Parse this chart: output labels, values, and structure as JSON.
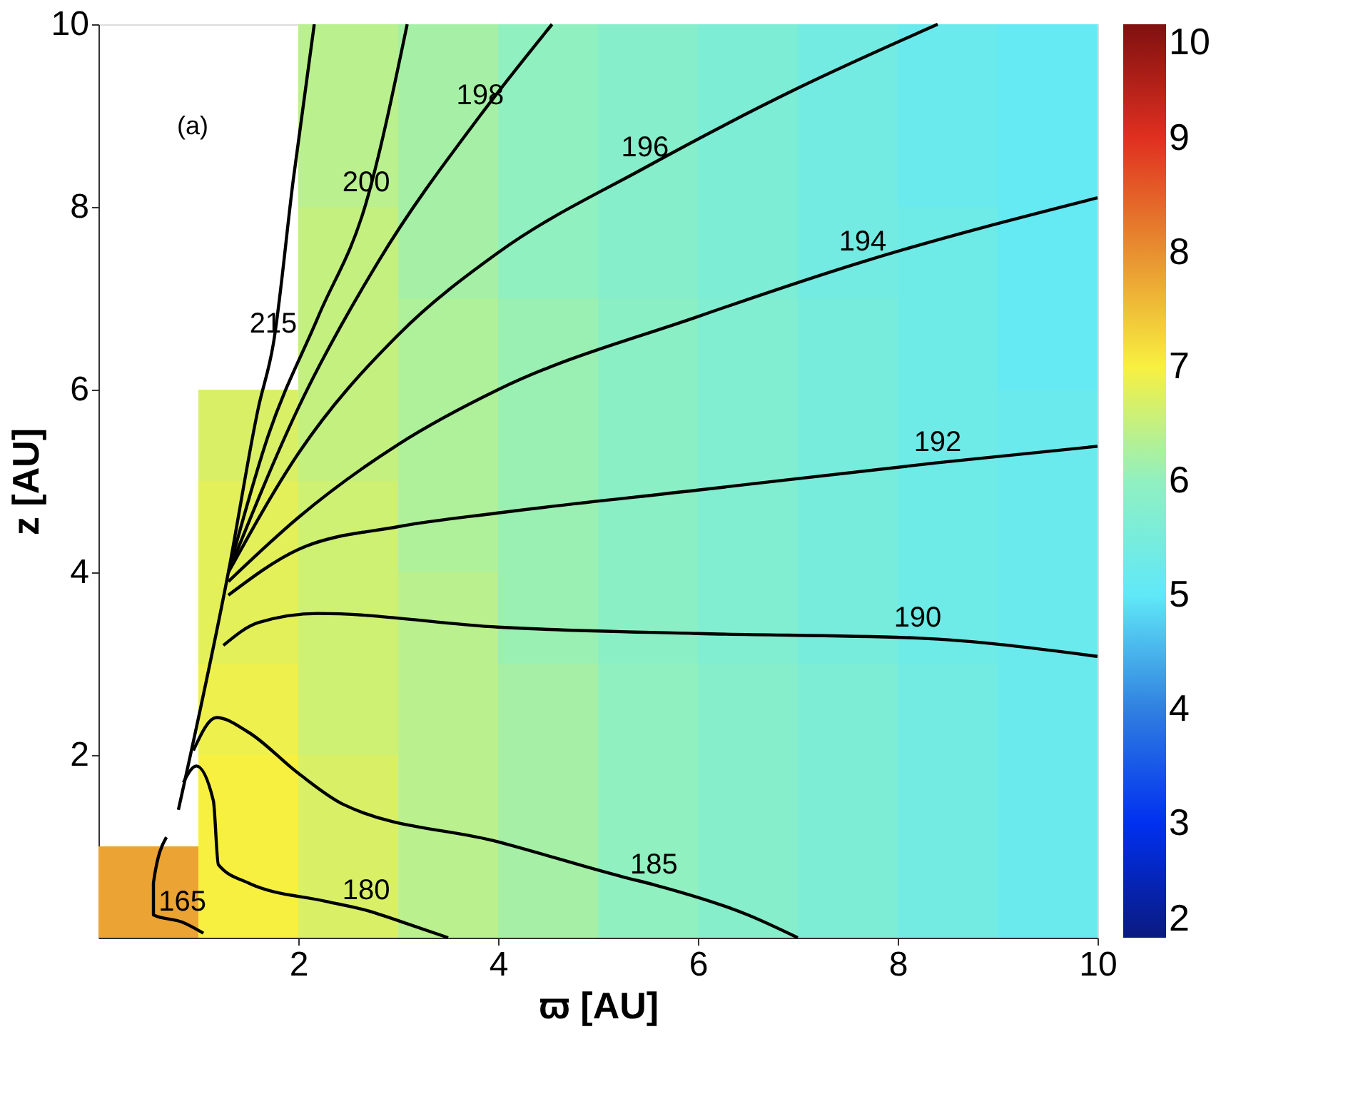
{
  "chart_data": {
    "type": "heatmap",
    "xlabel": "ϖ [AU]",
    "ylabel": "z [AU]",
    "x": [
      0.5,
      1.5,
      2.5,
      3.5,
      4.5,
      5.5,
      6.5,
      7.5,
      8.5,
      9.5
    ],
    "y": [
      9.5,
      8.5,
      7.5,
      6.5,
      5.5,
      4.5,
      3.5,
      2.5,
      1.5,
      0.5
    ],
    "cells": [
      [
        null,
        null,
        6.4,
        6.2,
        6.0,
        5.8,
        5.6,
        5.4,
        5.2,
        5.1
      ],
      [
        null,
        null,
        6.4,
        6.2,
        6.0,
        5.8,
        5.6,
        5.4,
        5.2,
        5.1
      ],
      [
        null,
        null,
        6.5,
        6.2,
        6.0,
        5.8,
        5.6,
        5.4,
        5.3,
        5.1
      ],
      [
        null,
        null,
        6.5,
        6.3,
        6.1,
        5.9,
        5.7,
        5.5,
        5.3,
        5.1
      ],
      [
        null,
        6.7,
        6.5,
        6.3,
        6.1,
        5.9,
        5.7,
        5.5,
        5.3,
        5.2
      ],
      [
        null,
        6.8,
        6.6,
        6.3,
        6.1,
        5.9,
        5.7,
        5.5,
        5.3,
        5.2
      ],
      [
        null,
        6.8,
        6.6,
        6.4,
        6.1,
        5.9,
        5.7,
        5.5,
        5.3,
        5.2
      ],
      [
        null,
        6.9,
        6.6,
        6.4,
        6.2,
        6.0,
        5.8,
        5.6,
        5.4,
        5.2
      ],
      [
        null,
        7.0,
        6.7,
        6.4,
        6.2,
        6.0,
        5.8,
        5.6,
        5.4,
        5.2
      ],
      [
        7.8,
        7.0,
        6.7,
        6.4,
        6.2,
        6.0,
        5.8,
        5.6,
        5.4,
        5.2
      ]
    ],
    "clim": [
      2,
      10
    ],
    "cticks": [
      2,
      3,
      4,
      5,
      6,
      7,
      8,
      9,
      10
    ],
    "colors": [
      "#0a1a80",
      "#0030f0",
      "#3080e0",
      "#60e8f8",
      "#90f0c0",
      "#f8f040",
      "#e89030",
      "#e03020",
      "#801010"
    ],
    "xlim": [
      0,
      10
    ],
    "xticks": [
      2,
      4,
      6,
      8,
      10
    ],
    "ylim": [
      0,
      10
    ],
    "yticks": [
      2,
      4,
      6,
      8,
      10
    ],
    "grid": false,
    "series": [
      {
        "type": "line",
        "color": "#000000",
        "x": [
          0.68,
          0.55,
          0.55,
          0.84,
          1.05
        ],
        "values": [
          1.1,
          0.6,
          0.25,
          0.17,
          0.05
        ]
      },
      {
        "type": "line",
        "color": "#000000",
        "x": [
          0.85,
          0.98,
          1.15,
          1.2,
          1.5,
          2.27,
          2.68,
          3.1,
          3.5
        ],
        "values": [
          1.7,
          1.88,
          1.5,
          0.8,
          0.6,
          0.4,
          0.3,
          0.15,
          0.0
        ]
      },
      {
        "type": "line",
        "color": "#000000",
        "x": [
          0.95,
          1.18,
          1.5,
          2.0,
          2.45,
          4.0,
          5.27,
          5.56,
          6.5,
          7.0
        ],
        "values": [
          2.05,
          2.41,
          2.25,
          1.8,
          1.46,
          1.05,
          0.66,
          0.58,
          0.25,
          0.0
        ]
      },
      {
        "type": "line",
        "color": "#000000",
        "x": [
          1.25,
          1.6,
          2.2,
          4.0,
          6.0,
          8.2,
          10.0
        ],
        "values": [
          3.2,
          3.45,
          3.55,
          3.4,
          3.33,
          3.28,
          3.08
        ]
      },
      {
        "type": "line",
        "color": "#000000",
        "x": [
          1.3,
          2.0,
          3.0,
          4.0,
          6.0,
          8.4,
          10.0
        ],
        "values": [
          3.75,
          4.25,
          4.5,
          4.65,
          4.9,
          5.2,
          5.38
        ]
      },
      {
        "type": "line",
        "color": "#000000",
        "x": [
          1.3,
          2.0,
          3.0,
          4.0,
          6.0,
          7.65,
          10.0
        ],
        "values": [
          3.9,
          4.6,
          5.4,
          6.0,
          6.8,
          7.4,
          8.1
        ]
      },
      {
        "type": "line",
        "color": "#000000",
        "x": [
          1.3,
          2.0,
          3.0,
          4.0,
          5.47,
          7.0,
          8.4
        ],
        "values": [
          4.0,
          5.3,
          6.6,
          7.5,
          8.43,
          9.3,
          10.0
        ]
      },
      {
        "type": "line",
        "color": "#000000",
        "x": [
          1.3,
          2.0,
          2.8,
          3.82,
          4.54
        ],
        "values": [
          4.0,
          5.8,
          7.4,
          9.0,
          10.0
        ]
      },
      {
        "type": "line",
        "color": "#000000",
        "x": [
          1.3,
          1.7,
          2.2,
          2.68,
          3.09
        ],
        "values": [
          4.0,
          5.5,
          6.8,
          8.05,
          10.0
        ]
      },
      {
        "type": "line",
        "color": "#000000",
        "x": [
          0.8,
          1.3,
          1.6,
          1.75,
          1.95,
          2.16
        ],
        "values": [
          1.4,
          4.0,
          5.8,
          6.5,
          8.3,
          10.0
        ]
      }
    ],
    "annotations": [
      {
        "text": "165",
        "x": 0.84,
        "y": 0.17
      },
      {
        "text": "180",
        "x": 2.68,
        "y": 0.3
      },
      {
        "text": "185",
        "x": 5.56,
        "y": 0.58
      },
      {
        "text": "190",
        "x": 8.2,
        "y": 3.28
      },
      {
        "text": "192",
        "x": 8.4,
        "y": 5.2
      },
      {
        "text": "194",
        "x": 7.65,
        "y": 7.4
      },
      {
        "text": "196",
        "x": 5.47,
        "y": 8.43
      },
      {
        "text": "198",
        "x": 3.82,
        "y": 9.0
      },
      {
        "text": "200",
        "x": 2.68,
        "y": 8.05
      },
      {
        "text": "215",
        "x": 1.75,
        "y": 6.5
      },
      "(a)"
    ]
  }
}
